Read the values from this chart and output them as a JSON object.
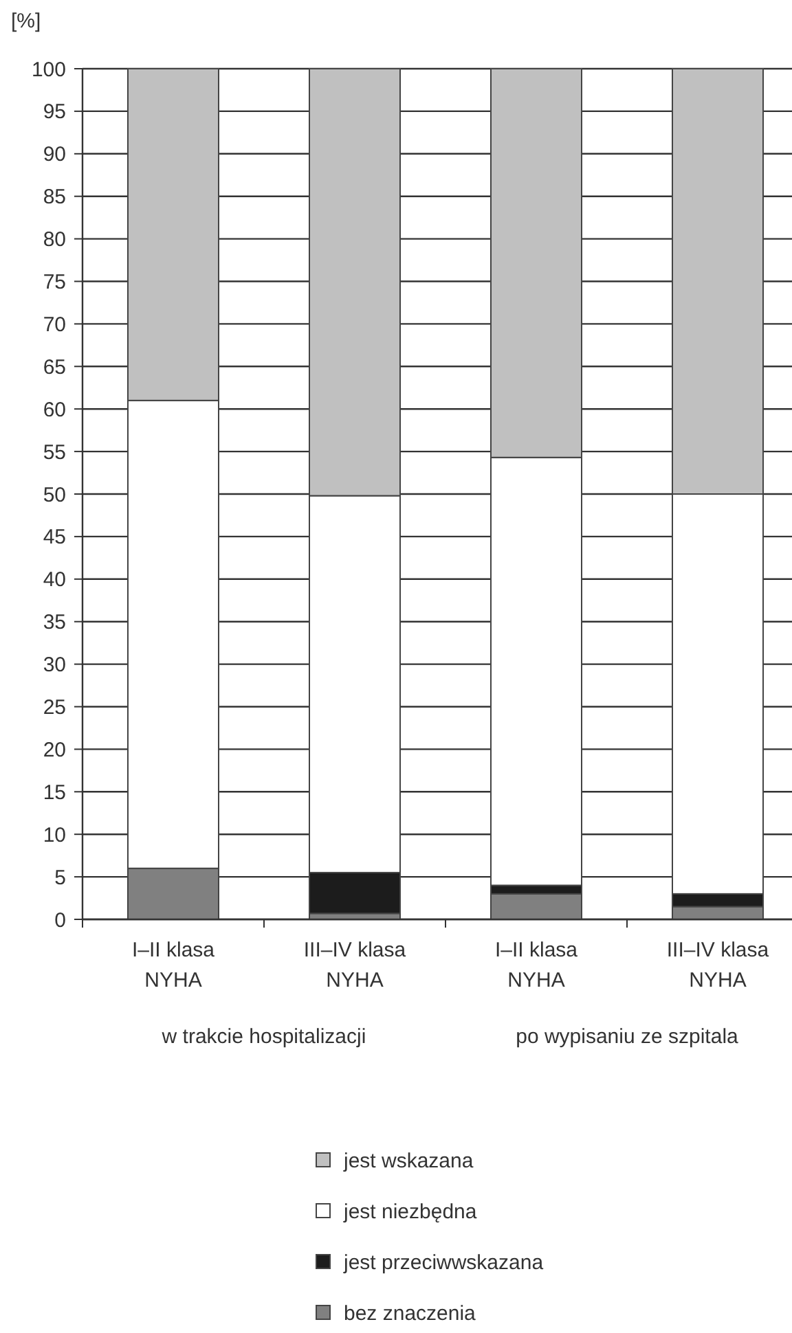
{
  "chart_data": {
    "type": "bar",
    "stacked": true,
    "ylabel": "[%]",
    "categories": [
      "I–II klasa NYHA",
      "III–IV klasa NYHA",
      "I–II klasa NYHA",
      "III–IV klasa NYHA"
    ],
    "series": [
      {
        "name": "bez znaczenia",
        "color": "#808080",
        "values": [
          6,
          0.7,
          3,
          1.5
        ]
      },
      {
        "name": "jest przeciwwskazana",
        "color": "#1c1c1c",
        "values": [
          0,
          4.8,
          1,
          1.5
        ]
      },
      {
        "name": "jest niezbędna",
        "color": "#ffffff",
        "values": [
          55,
          44.3,
          50.3,
          47
        ]
      },
      {
        "name": "jest wskazana",
        "color": "#c0c0c0",
        "values": [
          39,
          50.2,
          45.7,
          50
        ]
      }
    ],
    "annotations": [
      "w trakcie hospitalizacji",
      "po wypisaniu ze szpitala"
    ],
    "ylim": [
      0,
      100
    ],
    "yticks": [
      0,
      5,
      10,
      15,
      20,
      25,
      30,
      35,
      40,
      45,
      50,
      55,
      60,
      65,
      70,
      75,
      80,
      85,
      90,
      95,
      100
    ],
    "grid": "y",
    "legend": "bottom"
  }
}
